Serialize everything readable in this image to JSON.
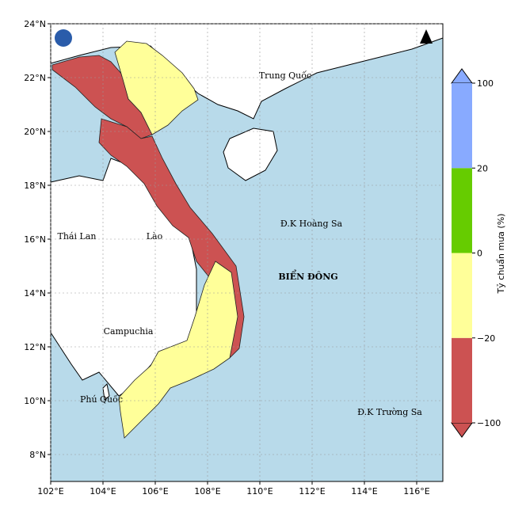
{
  "map": {
    "lon_range": [
      102,
      117
    ],
    "lat_range": [
      7,
      24
    ],
    "lon_ticks": [
      {
        "value": 102,
        "label": "102°E"
      },
      {
        "value": 104,
        "label": "104°E"
      },
      {
        "value": 106,
        "label": "106°E"
      },
      {
        "value": 108,
        "label": "108°E"
      },
      {
        "value": 110,
        "label": "110°E"
      },
      {
        "value": 112,
        "label": "112°E"
      },
      {
        "value": 114,
        "label": "114°E"
      },
      {
        "value": 116,
        "label": "116°E"
      }
    ],
    "lat_ticks": [
      {
        "value": 8,
        "label": "8°N"
      },
      {
        "value": 10,
        "label": "10°N"
      },
      {
        "value": 12,
        "label": "12°N"
      },
      {
        "value": 14,
        "label": "14°N"
      },
      {
        "value": 16,
        "label": "16°N"
      },
      {
        "value": 18,
        "label": "18°N"
      },
      {
        "value": 20,
        "label": "20°N"
      },
      {
        "value": 22,
        "label": "22°N"
      },
      {
        "value": 24,
        "label": "24°N"
      }
    ],
    "places": {
      "china": "Trung Quốc",
      "thailand": "Thái Lan",
      "laos": "Lào",
      "cambodia": "Campuchia",
      "sea": "BIỂN ĐÔNG",
      "paracel": "Đ.K Hoàng Sa",
      "spratly": "Đ.K Trường Sa",
      "phuquoc": "Phú Quốc"
    },
    "colorbar": {
      "label": "Tỷ chuẩn mưa (%)",
      "ticks": [
        {
          "value": -100,
          "label": "−100"
        },
        {
          "value": -20,
          "label": "−20"
        },
        0,
        20,
        100
      ],
      "colors": [
        "#cc5252",
        "#ffff99",
        "#66cc00",
        "#88aaff"
      ]
    }
  }
}
